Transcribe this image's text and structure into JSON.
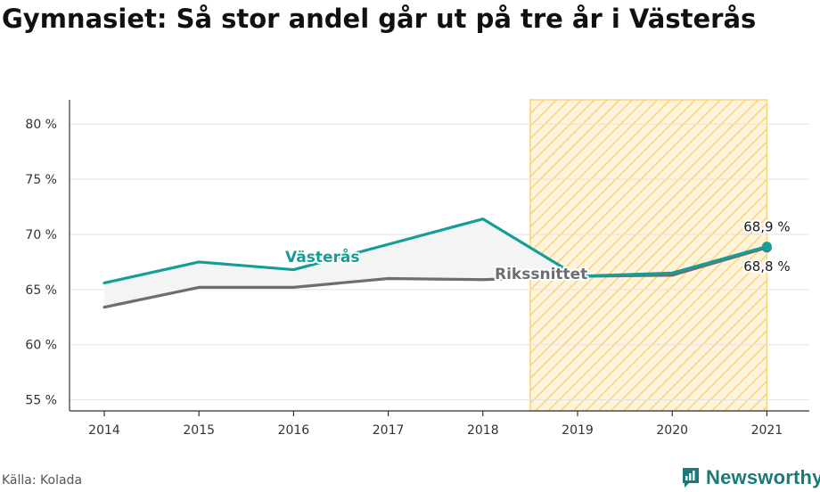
{
  "title": "Gymnasiet: Så stor andel går ut på tre år i Västerås",
  "source": "Källa: Kolada",
  "brand": {
    "name": "Newsworthy",
    "icon": "newsworthy-logo-icon"
  },
  "colors": {
    "vasteras": "#159e96",
    "riket": "#6e6d73",
    "fill": "#f4f4f4",
    "projection_hatch": "#f8d37a",
    "projection_bg": "#fef4dc",
    "grid": "#e2e2e2",
    "axis": "#333333",
    "brand": "#1a7a78"
  },
  "chart_data": {
    "type": "line",
    "x": [
      2014,
      2015,
      2016,
      2017,
      2018,
      2019,
      2020,
      2021
    ],
    "series": [
      {
        "name": "Västerås",
        "values": [
          65.6,
          67.5,
          66.8,
          69.1,
          71.4,
          66.2,
          66.5,
          68.9
        ]
      },
      {
        "name": "Rikssnittet",
        "values": [
          63.4,
          65.2,
          65.2,
          66.0,
          65.9,
          66.2,
          66.3,
          68.8
        ]
      }
    ],
    "y_tick_labels": [
      "55 %",
      "60 %",
      "65 %",
      "70 %",
      "75 %",
      "80 %"
    ],
    "y_ticks": [
      55,
      60,
      65,
      70,
      75,
      80
    ],
    "ylim": [
      54,
      82.2
    ],
    "highlight_region": {
      "from": 2018.5,
      "to": 2021,
      "style": "hatched"
    },
    "annotations": {
      "vasteras_label": "Västerås",
      "riket_label": "Rikssnittet",
      "last_value_vasteras": "68,9 %",
      "last_value_riket": "68,8 %"
    },
    "grid": true
  }
}
